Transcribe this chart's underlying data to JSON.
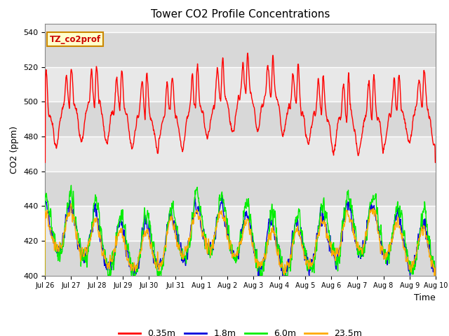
{
  "title": "Tower CO2 Profile Concentrations",
  "xlabel": "Time",
  "ylabel": "CO2 (ppm)",
  "ylim": [
    400,
    545
  ],
  "yticks": [
    400,
    420,
    440,
    460,
    480,
    500,
    520,
    540
  ],
  "annotation_text": "TZ_co2prof",
  "annotation_color": "#cc0000",
  "annotation_bg": "#ffffcc",
  "annotation_edge": "#cc8800",
  "series_colors": {
    "0.35m": "#ff0000",
    "1.8m": "#0000dd",
    "6.0m": "#00ee00",
    "23.5m": "#ffaa00"
  },
  "x_tick_labels": [
    "Jul 26",
    "Jul 27",
    "Jul 28",
    "Jul 29",
    "Jul 30",
    "Jul 31",
    "Aug 1",
    "Aug 2",
    "Aug 3",
    "Aug 4",
    "Aug 5",
    "Aug 6",
    "Aug 7",
    "Aug 8",
    "Aug 9",
    "Aug 10"
  ],
  "bg_color": "#ffffff",
  "plot_bg_color": "#e8e8e8",
  "grid_color": "#ffffff",
  "n_days": 15.5,
  "points_per_day": 96
}
